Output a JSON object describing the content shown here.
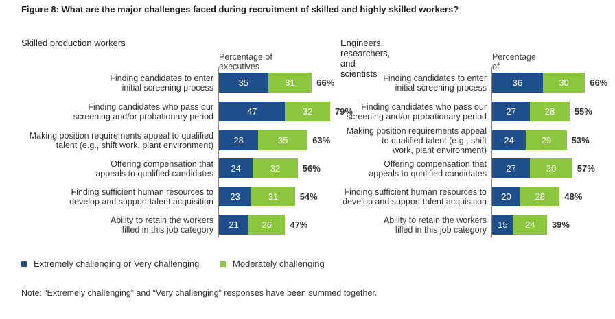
{
  "figure_title": "Figure 8: What are the major challenges faced during recruitment of skilled and highly skilled workers?",
  "legend": {
    "series1": "Extremely challenging or Very challenging",
    "series2": "Moderately challenging"
  },
  "note": "Note: “Extremely challenging” and “Very challenging” responses have been summed together.",
  "colors": {
    "series1": "#1f4e8c",
    "series2": "#8cc63f"
  },
  "chart_data": [
    {
      "type": "bar",
      "orientation": "horizontal",
      "stacked": true,
      "title": "Skilled production workers",
      "xlabel": "Percentage of executives",
      "categories": [
        "Finding candidates to enter initial screening process",
        "Finding candidates who pass our screening and/or probationary period",
        "Making position requirements appeal to qualified talent (e.g., shift work, plant environment)",
        "Offering compensation that appeals to qualified candidates",
        "Finding sufficient human resources to develop and support talent acquisition",
        "Ability to retain the workers filled in this job category"
      ],
      "category_lines": [
        [
          "Finding candidates to enter",
          "initial screening process"
        ],
        [
          "Finding candidates who pass our",
          "screening and/or probationary period"
        ],
        [
          "Making position requirements appeal to qualified",
          "talent (e.g., shift work, plant environment)"
        ],
        [
          "Offering compensation that",
          "appeals to qualified candidates"
        ],
        [
          "Finding sufficient human resources to",
          "develop and support talent acquisition"
        ],
        [
          "Ability to retain the workers",
          "filled in this job category"
        ]
      ],
      "series": [
        {
          "name": "Extremely challenging or Very challenging",
          "values": [
            35,
            47,
            28,
            24,
            23,
            21
          ]
        },
        {
          "name": "Moderately challenging",
          "values": [
            31,
            32,
            35,
            32,
            31,
            26
          ]
        }
      ],
      "totals": [
        "66%",
        "79%",
        "63%",
        "56%",
        "54%",
        "47%"
      ]
    },
    {
      "type": "bar",
      "orientation": "horizontal",
      "stacked": true,
      "title": "Engineers, researchers, and scientists",
      "xlabel": "Percentage of executives",
      "categories": [
        "Finding candidates to enter initial screening process",
        "Finding candidates who pass our screening and/or probationary period",
        "Making position requirements appeal to qualified talent (e.g., shift work, plant environment)",
        "Offering compensation that appeals to qualified candidates",
        "Finding sufficient human resources to develop and support talent acquisition",
        "Ability to retain the workers filled in this job category"
      ],
      "category_lines": [
        [
          "Finding candidates to enter",
          "initial screening process"
        ],
        [
          "Finding candidates who pass our",
          "screening and/or probationary period"
        ],
        [
          "Making position requirements appeal",
          "to qualified talent (e.g., shift",
          "work, plant environment)"
        ],
        [
          "Offering compensation that",
          "appeals to qualified candidates"
        ],
        [
          "Finding sufficient human resources to",
          "develop and support talent acquisition"
        ],
        [
          "Ability to retain the workers",
          "filled in this job category"
        ]
      ],
      "series": [
        {
          "name": "Extremely challenging or Very challenging",
          "values": [
            36,
            27,
            24,
            27,
            20,
            15
          ]
        },
        {
          "name": "Moderately challenging",
          "values": [
            30,
            28,
            29,
            30,
            28,
            24
          ]
        }
      ],
      "totals": [
        "66%",
        "55%",
        "53%",
        "57%",
        "48%",
        "39%"
      ]
    }
  ]
}
